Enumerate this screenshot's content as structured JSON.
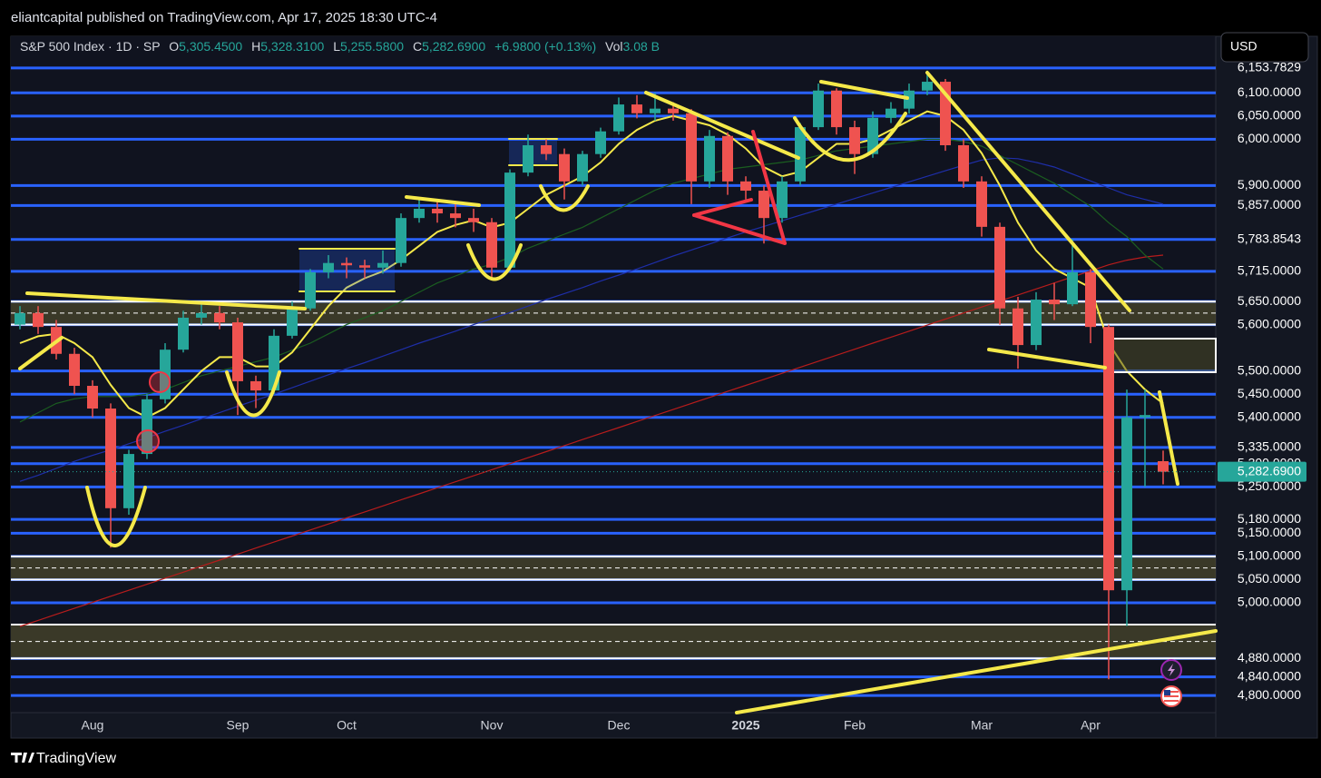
{
  "top_bar": "eliantcapital published on TradingView.com, Apr 17, 2025 18:30 UTC-4",
  "legend": {
    "symbol": "S&P 500 Index · 1D · SP",
    "o_key": "O",
    "o": "5,305.4500",
    "h_key": "H",
    "h": "5,328.3100",
    "l_key": "L",
    "l": "5,255.5800",
    "c_key": "C",
    "c": "5,282.6900",
    "change": "+6.9800 (+0.13%)",
    "vol_key": "Vol",
    "vol": "3.08 B"
  },
  "currency": "USD",
  "footer": "TradingView",
  "chart_data": {
    "type": "candlestick",
    "up_color": "#26a69a",
    "down_color": "#ef5350",
    "level_color": "#2962ff",
    "ylim": [
      4763,
      6222
    ],
    "yticks": [
      {
        "value": 6153.7829,
        "label": "6,153.7829"
      },
      {
        "value": 6100,
        "label": "6,100.0000"
      },
      {
        "value": 6050,
        "label": "6,050.0000"
      },
      {
        "value": 6000,
        "label": "6,000.0000"
      },
      {
        "value": 5900,
        "label": "5,900.0000"
      },
      {
        "value": 5857,
        "label": "5,857.0000"
      },
      {
        "value": 5783.8543,
        "label": "5,783.8543"
      },
      {
        "value": 5715,
        "label": "5,715.0000"
      },
      {
        "value": 5650,
        "label": "5,650.0000"
      },
      {
        "value": 5600,
        "label": "5,600.0000"
      },
      {
        "value": 5500,
        "label": "5,500.0000"
      },
      {
        "value": 5450,
        "label": "5,450.0000"
      },
      {
        "value": 5400,
        "label": "5,400.0000"
      },
      {
        "value": 5335,
        "label": "5,335.0000"
      },
      {
        "value": 5300,
        "label": "5,300.0000"
      },
      {
        "value": 5250,
        "label": "5,250.0000"
      },
      {
        "value": 5180,
        "label": "5,180.0000"
      },
      {
        "value": 5150,
        "label": "5,150.0000"
      },
      {
        "value": 5100,
        "label": "5,100.0000"
      },
      {
        "value": 5050,
        "label": "5,050.0000"
      },
      {
        "value": 5000,
        "label": "5,000.0000"
      },
      {
        "value": 4880,
        "label": "4,880.0000"
      },
      {
        "value": 4840,
        "label": "4,840.0000"
      },
      {
        "value": 4800,
        "label": "4,800.0000"
      }
    ],
    "last_price_label": "5,282.6900",
    "zones": [
      [
        5600,
        5650
      ],
      [
        5050,
        5100
      ],
      [
        4880,
        4953
      ]
    ],
    "categories": [
      null,
      null,
      null,
      null,
      "Aug",
      null,
      null,
      null,
      null,
      null,
      null,
      null,
      "Sep",
      null,
      null,
      null,
      null,
      null,
      "Oct",
      null,
      null,
      null,
      null,
      null,
      null,
      null,
      "Nov",
      null,
      null,
      null,
      null,
      null,
      null,
      "Dec",
      null,
      null,
      null,
      null,
      null,
      null,
      "2025",
      null,
      null,
      null,
      null,
      null,
      "Feb",
      null,
      null,
      null,
      null,
      null,
      null,
      "Mar",
      null,
      null,
      null,
      null,
      null,
      "Apr",
      null,
      null,
      null,
      null
    ],
    "ohlc": [
      [
        5600,
        5640,
        5590,
        5625
      ],
      [
        5625,
        5640,
        5580,
        5595
      ],
      [
        5595,
        5610,
        5525,
        5537
      ],
      [
        5537,
        5550,
        5450,
        5468
      ],
      [
        5468,
        5480,
        5400,
        5419
      ],
      [
        5419,
        5430,
        5119,
        5204
      ],
      [
        5204,
        5330,
        5190,
        5321
      ],
      [
        5321,
        5450,
        5310,
        5439
      ],
      [
        5439,
        5560,
        5430,
        5546
      ],
      [
        5546,
        5630,
        5540,
        5615
      ],
      [
        5615,
        5650,
        5600,
        5625
      ],
      [
        5625,
        5640,
        5590,
        5605
      ],
      [
        5605,
        5615,
        5405,
        5478
      ],
      [
        5478,
        5490,
        5420,
        5458
      ],
      [
        5458,
        5590,
        5450,
        5576
      ],
      [
        5576,
        5650,
        5570,
        5635
      ],
      [
        5635,
        5720,
        5630,
        5713
      ],
      [
        5713,
        5750,
        5700,
        5733
      ],
      [
        5733,
        5745,
        5700,
        5728
      ],
      [
        5728,
        5740,
        5700,
        5723
      ],
      [
        5723,
        5760,
        5710,
        5733
      ],
      [
        5733,
        5840,
        5725,
        5830
      ],
      [
        5830,
        5870,
        5820,
        5850
      ],
      [
        5850,
        5865,
        5820,
        5840
      ],
      [
        5840,
        5860,
        5810,
        5830
      ],
      [
        5830,
        5850,
        5800,
        5821
      ],
      [
        5821,
        5830,
        5700,
        5723
      ],
      [
        5723,
        5935,
        5715,
        5928
      ],
      [
        5928,
        6010,
        5920,
        5987
      ],
      [
        5987,
        6000,
        5955,
        5968
      ],
      [
        5968,
        5980,
        5870,
        5909
      ],
      [
        5909,
        5975,
        5900,
        5968
      ],
      [
        5968,
        6025,
        5960,
        6017
      ],
      [
        6017,
        6090,
        6010,
        6075
      ],
      [
        6075,
        6095,
        6045,
        6056
      ],
      [
        6056,
        6100,
        6040,
        6066
      ],
      [
        6066,
        6080,
        6040,
        6056
      ],
      [
        6056,
        6065,
        5860,
        5909
      ],
      [
        5909,
        6020,
        5895,
        6007
      ],
      [
        6007,
        6015,
        5880,
        5909
      ],
      [
        5909,
        5920,
        5870,
        5889
      ],
      [
        5889,
        5900,
        5775,
        5830
      ],
      [
        5830,
        5920,
        5820,
        5909
      ],
      [
        5909,
        6035,
        5900,
        6026
      ],
      [
        6026,
        6120,
        6020,
        6105
      ],
      [
        6105,
        6110,
        6010,
        6026
      ],
      [
        6026,
        6040,
        5925,
        5968
      ],
      [
        5968,
        6060,
        5960,
        6046
      ],
      [
        6046,
        6080,
        6035,
        6066
      ],
      [
        6066,
        6120,
        6055,
        6105
      ],
      [
        6105,
        6148,
        6095,
        6124
      ],
      [
        6124,
        6130,
        5975,
        5987
      ],
      [
        5987,
        6000,
        5895,
        5909
      ],
      [
        5909,
        5920,
        5790,
        5811
      ],
      [
        5811,
        5820,
        5600,
        5635
      ],
      [
        5635,
        5660,
        5505,
        5556
      ],
      [
        5556,
        5670,
        5545,
        5654
      ],
      [
        5654,
        5690,
        5610,
        5644
      ],
      [
        5644,
        5785,
        5640,
        5713
      ],
      [
        5713,
        5720,
        5560,
        5595
      ],
      [
        5595,
        5600,
        4835,
        5027
      ],
      [
        5027,
        5460,
        4950,
        5400
      ],
      [
        5400,
        5460,
        5250,
        5405
      ],
      [
        5305.45,
        5328.31,
        5255.58,
        5282.69
      ]
    ],
    "moving_averages": [
      {
        "color": "#1e2ea8",
        "values": [
          5262,
          5275,
          5290,
          5305,
          5318,
          5330,
          5343,
          5356,
          5370,
          5383,
          5397,
          5410,
          5424,
          5437,
          5450,
          5464,
          5478,
          5492,
          5505,
          5518,
          5532,
          5546,
          5560,
          5573,
          5586,
          5600,
          5613,
          5626,
          5640,
          5654,
          5667,
          5680,
          5694,
          5707,
          5720,
          5734,
          5748,
          5761,
          5774,
          5787,
          5800,
          5812,
          5824,
          5836,
          5848,
          5860,
          5872,
          5884,
          5896,
          5908,
          5920,
          5932,
          5944,
          5955,
          5960,
          5958,
          5950,
          5940,
          5925,
          5910,
          5895,
          5880,
          5870,
          5860
        ]
      },
      {
        "color": "#b71c1c",
        "values": [
          4949,
          4962,
          4975,
          4988,
          5001,
          5014,
          5027,
          5040,
          5053,
          5066,
          5079,
          5092,
          5105,
          5118,
          5131,
          5144,
          5157,
          5170,
          5183,
          5196,
          5209,
          5222,
          5235,
          5248,
          5261,
          5274,
          5287,
          5300,
          5313,
          5326,
          5339,
          5352,
          5365,
          5378,
          5391,
          5404,
          5417,
          5430,
          5443,
          5456,
          5469,
          5482,
          5495,
          5508,
          5521,
          5534,
          5547,
          5560,
          5573,
          5586,
          5599,
          5612,
          5625,
          5638,
          5651,
          5664,
          5677,
          5690,
          5703,
          5716,
          5729,
          5739,
          5746,
          5750
        ]
      },
      {
        "color": "#1b5e20",
        "values": [
          5390,
          5410,
          5430,
          5440,
          5445,
          5445,
          5445,
          5450,
          5460,
          5475,
          5490,
          5500,
          5510,
          5520,
          5530,
          5545,
          5560,
          5580,
          5600,
          5615,
          5630,
          5650,
          5670,
          5690,
          5705,
          5720,
          5730,
          5745,
          5765,
          5780,
          5795,
          5810,
          5830,
          5850,
          5870,
          5890,
          5905,
          5915,
          5925,
          5935,
          5940,
          5945,
          5950,
          5955,
          5965,
          5975,
          5980,
          5985,
          5990,
          5995,
          6000,
          6000,
          5995,
          5985,
          5965,
          5945,
          5925,
          5905,
          5880,
          5855,
          5820,
          5790,
          5750,
          5720
        ]
      },
      {
        "color": "#f5e94a",
        "values": [
          5560,
          5575,
          5580,
          5560,
          5530,
          5470,
          5420,
          5400,
          5420,
          5460,
          5500,
          5530,
          5530,
          5510,
          5510,
          5540,
          5590,
          5640,
          5680,
          5700,
          5715,
          5740,
          5770,
          5800,
          5815,
          5825,
          5810,
          5820,
          5850,
          5880,
          5900,
          5920,
          5950,
          5990,
          6020,
          6040,
          6050,
          6040,
          6030,
          6010,
          5980,
          5940,
          5920,
          5930,
          5960,
          5990,
          5990,
          6000,
          6020,
          6040,
          6060,
          6050,
          6020,
          5970,
          5900,
          5820,
          5760,
          5720,
          5700,
          5680,
          5560,
          5500,
          5460,
          5430
        ]
      }
    ]
  }
}
